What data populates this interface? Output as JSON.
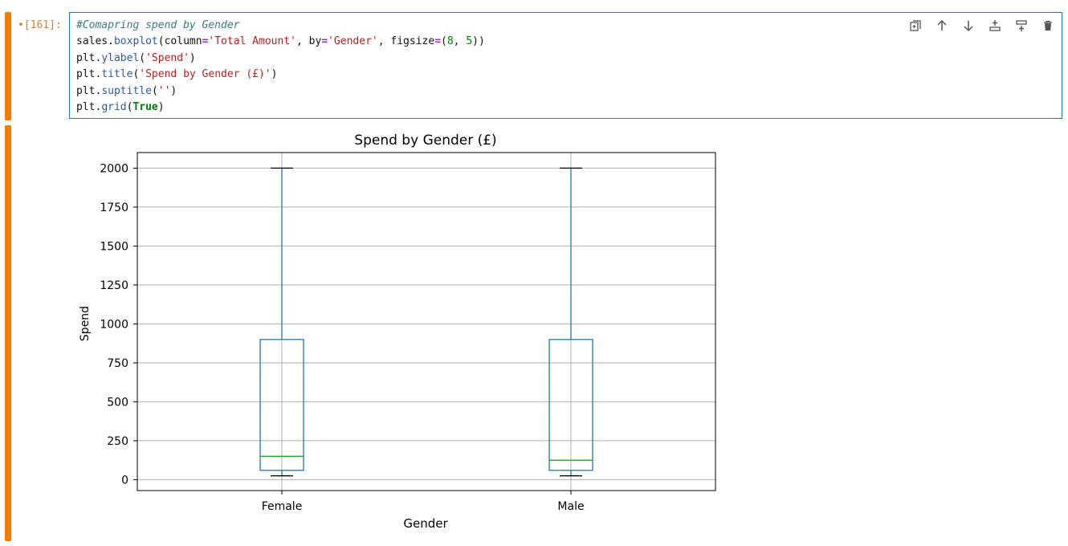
{
  "cell1": {
    "prompt": "[161]:",
    "code_lines": [
      [
        {
          "t": "#Comapring spend by Gender",
          "c": "c-comment"
        }
      ],
      [
        {
          "t": "sales."
        },
        {
          "t": "boxplot",
          "c": "c-attr"
        },
        {
          "t": "(column"
        },
        {
          "t": "=",
          "c": "c-op"
        },
        {
          "t": "'Total Amount'",
          "c": "c-str"
        },
        {
          "t": ", by"
        },
        {
          "t": "=",
          "c": "c-op"
        },
        {
          "t": "'Gender'",
          "c": "c-str"
        },
        {
          "t": ", figsize"
        },
        {
          "t": "=",
          "c": "c-op"
        },
        {
          "t": "("
        },
        {
          "t": "8",
          "c": "c-num"
        },
        {
          "t": ", "
        },
        {
          "t": "5",
          "c": "c-num"
        },
        {
          "t": "))"
        }
      ],
      [
        {
          "t": "plt."
        },
        {
          "t": "ylabel",
          "c": "c-attr"
        },
        {
          "t": "("
        },
        {
          "t": "'Spend'",
          "c": "c-str"
        },
        {
          "t": ")"
        }
      ],
      [
        {
          "t": "plt."
        },
        {
          "t": "title",
          "c": "c-attr"
        },
        {
          "t": "("
        },
        {
          "t": "'Spend by Gender (£)'",
          "c": "c-str"
        },
        {
          "t": ")"
        }
      ],
      [
        {
          "t": "plt."
        },
        {
          "t": "suptitle",
          "c": "c-attr"
        },
        {
          "t": "("
        },
        {
          "t": "''",
          "c": "c-str"
        },
        {
          "t": ")"
        }
      ],
      [
        {
          "t": "plt."
        },
        {
          "t": "grid",
          "c": "c-attr"
        },
        {
          "t": "("
        },
        {
          "t": "True",
          "c": "c-kw"
        },
        {
          "t": ")"
        }
      ]
    ],
    "toolbar": [
      "duplicate-icon",
      "move-up-icon",
      "move-down-icon",
      "insert-above-icon",
      "insert-below-icon",
      "delete-icon"
    ]
  },
  "colors": {
    "cell_bar": "#f57c00",
    "cell_border": "#1976d2",
    "box": "#1f77b4",
    "median": "#2ca02c",
    "grid": "#b0b0b0"
  },
  "chart_data": {
    "type": "boxplot",
    "title": "Spend by Gender (£)",
    "xlabel": "Gender",
    "ylabel": "Spend",
    "ylim": [
      -70,
      2100
    ],
    "yticks": [
      0,
      250,
      500,
      750,
      1000,
      1250,
      1500,
      1750,
      2000
    ],
    "grid": true,
    "categories": [
      "Female",
      "Male"
    ],
    "boxes": [
      {
        "name": "Female",
        "whisker_low": 25,
        "q1": 60,
        "median": 150,
        "q3": 900,
        "whisker_high": 2000
      },
      {
        "name": "Male",
        "whisker_low": 25,
        "q1": 60,
        "median": 125,
        "q3": 900,
        "whisker_high": 2000
      }
    ]
  }
}
